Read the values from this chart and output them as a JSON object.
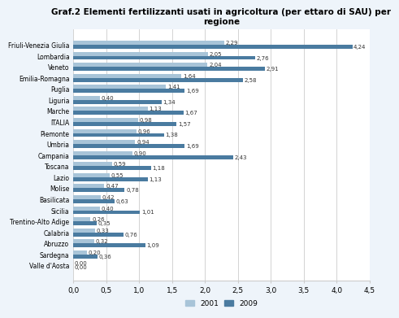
{
  "title": "Graf.2 Elementi fertilizzanti usati in agricoltura (per ettaro di SAU) per\nregione",
  "regions": [
    "Friuli-Venezia Giulia",
    "Lombardia",
    "Veneto",
    "Emilia-Romagna",
    "Puglia",
    "Liguria",
    "Marche",
    "ITALIA",
    "Piemonte",
    "Umbria",
    "Campania",
    "Toscana",
    "Lazio",
    "Molise",
    "Basilicata",
    "Sicilia",
    "Trentino-Alto Adige",
    "Calabria",
    "Abruzzo",
    "Sardegna",
    "Valle d'Aosta"
  ],
  "values_2001": [
    2.29,
    2.05,
    2.04,
    1.64,
    1.41,
    0.4,
    1.13,
    0.98,
    0.96,
    0.94,
    0.9,
    0.59,
    0.55,
    0.47,
    0.42,
    0.4,
    0.26,
    0.33,
    0.32,
    0.2,
    0.0
  ],
  "values_2009": [
    4.24,
    2.76,
    2.91,
    2.58,
    1.69,
    1.34,
    1.67,
    1.57,
    1.38,
    1.69,
    2.43,
    1.18,
    1.13,
    0.78,
    0.63,
    1.01,
    0.35,
    0.76,
    1.09,
    0.36,
    0.0
  ],
  "color_2001": "#A8C4D8",
  "color_2009": "#4A7BA0",
  "xlim": [
    0,
    4.5
  ],
  "xticks": [
    0.0,
    0.5,
    1.0,
    1.5,
    2.0,
    2.5,
    3.0,
    3.5,
    4.0,
    4.5
  ],
  "xticklabels": [
    "0,0",
    "0,5",
    "1,0",
    "1,5",
    "2,0",
    "2,5",
    "3,0",
    "3,5",
    "4,0",
    "4,5"
  ],
  "legend_2001": "2001",
  "legend_2009": "2009",
  "bar_height": 0.36,
  "bg_color": "#EEF4FA",
  "plot_bg_color": "#FFFFFF",
  "grid_color": "#CCCCCC"
}
